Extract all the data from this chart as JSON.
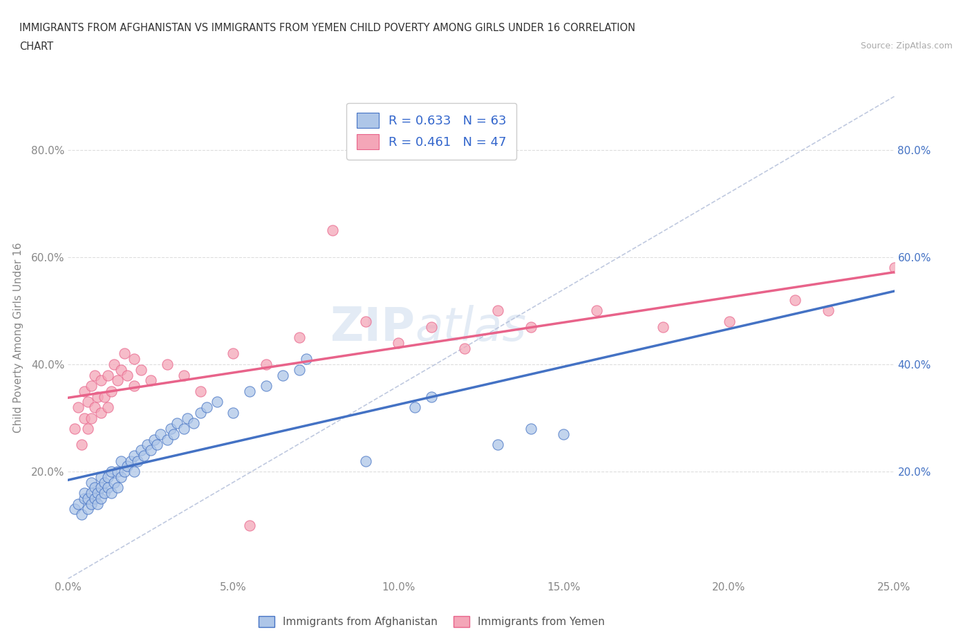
{
  "title_line1": "IMMIGRANTS FROM AFGHANISTAN VS IMMIGRANTS FROM YEMEN CHILD POVERTY AMONG GIRLS UNDER 16 CORRELATION",
  "title_line2": "CHART",
  "source_text": "Source: ZipAtlas.com",
  "ylabel": "Child Poverty Among Girls Under 16",
  "x_tick_labels": [
    "0.0%",
    "5.0%",
    "10.0%",
    "15.0%",
    "20.0%",
    "25.0%"
  ],
  "x_tick_values": [
    0.0,
    5.0,
    10.0,
    15.0,
    20.0,
    25.0
  ],
  "y_tick_labels": [
    "20.0%",
    "40.0%",
    "60.0%",
    "80.0%"
  ],
  "y_tick_values": [
    20.0,
    40.0,
    60.0,
    80.0
  ],
  "xlim": [
    0.0,
    25.0
  ],
  "ylim": [
    0.0,
    90.0
  ],
  "watermark_zip": "ZIP",
  "watermark_atlas": "atlas",
  "legend_entries": [
    {
      "label": "R = 0.633   N = 63",
      "color": "#aec6e8"
    },
    {
      "label": "R = 0.461   N = 47",
      "color": "#f4a6b8"
    }
  ],
  "bottom_legend": [
    "Immigrants from Afghanistan",
    "Immigrants from Yemen"
  ],
  "afghanistan_color": "#aec6e8",
  "yemen_color": "#f4a6b8",
  "trendline_afghanistan_color": "#4472c4",
  "trendline_yemen_color": "#e8638a",
  "diagonal_color": "#b0bcd8",
  "background_color": "#ffffff",
  "grid_color": "#dddddd",
  "afghanistan_scatter": [
    [
      0.2,
      13.0
    ],
    [
      0.3,
      14.0
    ],
    [
      0.4,
      12.0
    ],
    [
      0.5,
      15.0
    ],
    [
      0.5,
      16.0
    ],
    [
      0.6,
      13.0
    ],
    [
      0.6,
      15.0
    ],
    [
      0.7,
      14.0
    ],
    [
      0.7,
      16.0
    ],
    [
      0.7,
      18.0
    ],
    [
      0.8,
      15.0
    ],
    [
      0.8,
      17.0
    ],
    [
      0.9,
      14.0
    ],
    [
      0.9,
      16.0
    ],
    [
      1.0,
      15.0
    ],
    [
      1.0,
      17.0
    ],
    [
      1.0,
      19.0
    ],
    [
      1.1,
      16.0
    ],
    [
      1.1,
      18.0
    ],
    [
      1.2,
      17.0
    ],
    [
      1.2,
      19.0
    ],
    [
      1.3,
      16.0
    ],
    [
      1.3,
      20.0
    ],
    [
      1.4,
      18.0
    ],
    [
      1.5,
      17.0
    ],
    [
      1.5,
      20.0
    ],
    [
      1.6,
      19.0
    ],
    [
      1.6,
      22.0
    ],
    [
      1.7,
      20.0
    ],
    [
      1.8,
      21.0
    ],
    [
      1.9,
      22.0
    ],
    [
      2.0,
      20.0
    ],
    [
      2.0,
      23.0
    ],
    [
      2.1,
      22.0
    ],
    [
      2.2,
      24.0
    ],
    [
      2.3,
      23.0
    ],
    [
      2.4,
      25.0
    ],
    [
      2.5,
      24.0
    ],
    [
      2.6,
      26.0
    ],
    [
      2.7,
      25.0
    ],
    [
      2.8,
      27.0
    ],
    [
      3.0,
      26.0
    ],
    [
      3.1,
      28.0
    ],
    [
      3.2,
      27.0
    ],
    [
      3.3,
      29.0
    ],
    [
      3.5,
      28.0
    ],
    [
      3.6,
      30.0
    ],
    [
      3.8,
      29.0
    ],
    [
      4.0,
      31.0
    ],
    [
      4.2,
      32.0
    ],
    [
      4.5,
      33.0
    ],
    [
      5.0,
      31.0
    ],
    [
      5.5,
      35.0
    ],
    [
      6.0,
      36.0
    ],
    [
      6.5,
      38.0
    ],
    [
      7.0,
      39.0
    ],
    [
      7.2,
      41.0
    ],
    [
      9.0,
      22.0
    ],
    [
      10.5,
      32.0
    ],
    [
      11.0,
      34.0
    ],
    [
      13.0,
      25.0
    ],
    [
      14.0,
      28.0
    ],
    [
      15.0,
      27.0
    ]
  ],
  "yemen_scatter": [
    [
      0.2,
      28.0
    ],
    [
      0.3,
      32.0
    ],
    [
      0.4,
      25.0
    ],
    [
      0.5,
      30.0
    ],
    [
      0.5,
      35.0
    ],
    [
      0.6,
      28.0
    ],
    [
      0.6,
      33.0
    ],
    [
      0.7,
      30.0
    ],
    [
      0.7,
      36.0
    ],
    [
      0.8,
      32.0
    ],
    [
      0.8,
      38.0
    ],
    [
      0.9,
      34.0
    ],
    [
      1.0,
      31.0
    ],
    [
      1.0,
      37.0
    ],
    [
      1.1,
      34.0
    ],
    [
      1.2,
      32.0
    ],
    [
      1.2,
      38.0
    ],
    [
      1.3,
      35.0
    ],
    [
      1.4,
      40.0
    ],
    [
      1.5,
      37.0
    ],
    [
      1.6,
      39.0
    ],
    [
      1.7,
      42.0
    ],
    [
      1.8,
      38.0
    ],
    [
      2.0,
      36.0
    ],
    [
      2.0,
      41.0
    ],
    [
      2.2,
      39.0
    ],
    [
      2.5,
      37.0
    ],
    [
      3.0,
      40.0
    ],
    [
      3.5,
      38.0
    ],
    [
      4.0,
      35.0
    ],
    [
      5.0,
      42.0
    ],
    [
      5.5,
      10.0
    ],
    [
      6.0,
      40.0
    ],
    [
      7.0,
      45.0
    ],
    [
      8.0,
      65.0
    ],
    [
      9.0,
      48.0
    ],
    [
      10.0,
      44.0
    ],
    [
      11.0,
      47.0
    ],
    [
      12.0,
      43.0
    ],
    [
      13.0,
      50.0
    ],
    [
      14.0,
      47.0
    ],
    [
      16.0,
      50.0
    ],
    [
      18.0,
      47.0
    ],
    [
      20.0,
      48.0
    ],
    [
      22.0,
      52.0
    ],
    [
      23.0,
      50.0
    ],
    [
      25.0,
      58.0
    ]
  ]
}
